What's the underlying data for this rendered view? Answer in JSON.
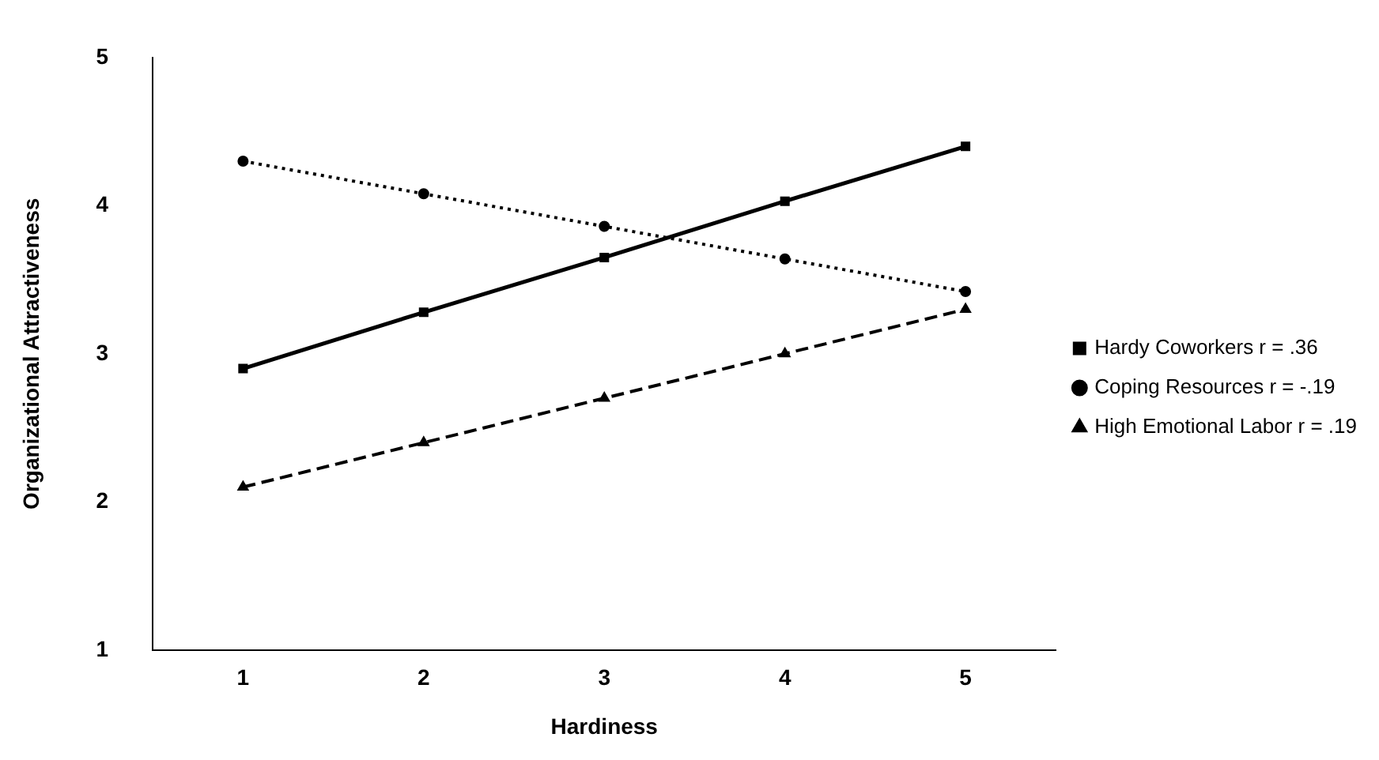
{
  "chart_data": {
    "type": "line",
    "xlabel": "Hardiness",
    "ylabel": "Organizational Attractiveness",
    "categories": [
      "1",
      "2",
      "3",
      "4",
      "5"
    ],
    "ylim": [
      1,
      5
    ],
    "yticks": [
      1,
      2,
      3,
      4,
      5
    ],
    "grid": false,
    "legend": "right",
    "series": [
      {
        "name": "Hardy Coworkers r = .36",
        "color": "#000000",
        "values": [
          2.9,
          3.28,
          3.65,
          4.03,
          4.4
        ],
        "line_style": "solid",
        "marker": "square"
      },
      {
        "name": "Coping Resources r = -.19",
        "color": "#000000",
        "values": [
          4.3,
          4.08,
          3.86,
          3.64,
          3.42
        ],
        "line_style": "dotted",
        "marker": "circle"
      },
      {
        "name": "High Emotional Labor r = .19",
        "color": "#000000",
        "values": [
          2.1,
          2.4,
          2.7,
          3.0,
          3.3
        ],
        "line_style": "dashed",
        "marker": "triangle"
      }
    ]
  }
}
